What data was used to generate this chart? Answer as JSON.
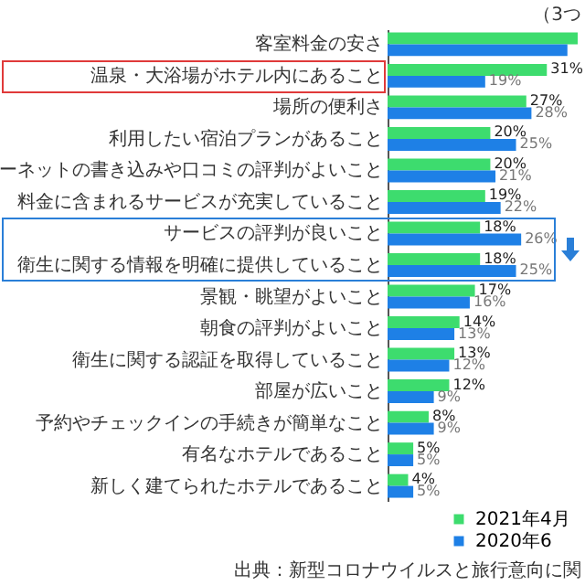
{
  "chart_data": {
    "type": "bar",
    "orientation": "horizontal",
    "categories": [
      "客室料金の安さ",
      "温泉・大浴場がホテル内にあること",
      "場所の便利さ",
      "利用したい宿泊プランがあること",
      "ーネットの書き込みや口コミの評判がよいこと",
      "料金に含まれるサービスが充実していること",
      "サービスの評判が良いこと",
      "衛生に関する情報を明確に提供していること",
      "景観・眺望がよいこと",
      "朝食の評判がよいこと",
      "衛生に関する認証を取得していること",
      "部屋が広いこと",
      "予約やチェックインの手続きが簡単なこと",
      "有名なホテルであること",
      "新しく建てられたホテルであること"
    ],
    "series": [
      {
        "name": "2021年4月",
        "color": "#3ddc6e",
        "values": [
          37,
          31,
          27,
          20,
          20,
          19,
          18,
          18,
          17,
          14,
          13,
          12,
          8,
          5,
          4
        ],
        "value_labels": [
          null,
          "31%",
          "27%",
          "20%",
          "20%",
          "19%",
          "18%",
          "18%",
          "17%",
          "14%",
          "13%",
          "12%",
          "8%",
          "5%",
          "4%"
        ]
      },
      {
        "name": "2020年6",
        "color": "#1e80e6",
        "values": [
          35,
          19,
          28,
          25,
          21,
          22,
          26,
          25,
          16,
          13,
          12,
          9,
          9,
          5,
          5
        ],
        "value_labels": [
          null,
          "19%",
          "28%",
          "25%",
          "21%",
          "22%",
          "26%",
          "25%",
          "16%",
          "13%",
          "12%",
          "9%",
          "9%",
          "5%",
          "5%"
        ]
      }
    ],
    "legend": "bottom right",
    "annotations": [
      "（3つ",
      "出典：新型コロナウイルスと旅行意向に関"
    ]
  }
}
